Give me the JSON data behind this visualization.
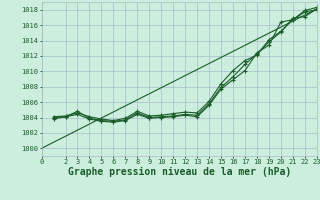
{
  "bg_color": "#cceedd",
  "grid_color": "#aabbcc",
  "line_color": "#1a5c2a",
  "xlabel": "Graphe pression niveau de la mer (hPa)",
  "xlabel_fontsize": 7,
  "ylim": [
    999,
    1019
  ],
  "xlim": [
    0,
    23
  ],
  "yticks": [
    1000,
    1002,
    1004,
    1006,
    1008,
    1010,
    1012,
    1014,
    1016,
    1018
  ],
  "xticks": [
    0,
    2,
    3,
    4,
    5,
    6,
    7,
    8,
    9,
    10,
    11,
    12,
    13,
    14,
    15,
    16,
    17,
    18,
    19,
    20,
    21,
    22,
    23
  ],
  "series1_x": [
    1,
    2,
    3,
    4,
    5,
    6,
    7,
    8,
    9,
    10,
    11,
    12,
    13,
    14,
    15,
    16,
    17,
    18,
    19,
    20,
    21,
    22,
    23
  ],
  "series1_y": [
    1003.8,
    1004.1,
    1004.8,
    1003.9,
    1003.6,
    1003.5,
    1003.7,
    1004.6,
    1004.0,
    1004.1,
    1004.2,
    1004.4,
    1004.3,
    1005.8,
    1007.9,
    1009.3,
    1010.9,
    1012.3,
    1013.8,
    1015.1,
    1016.9,
    1017.1,
    1018.1
  ],
  "series2_x": [
    1,
    2,
    3,
    4,
    5,
    6,
    7,
    8,
    9,
    10,
    11,
    12,
    13,
    14,
    15,
    16,
    17,
    18,
    19,
    20,
    21,
    22,
    23
  ],
  "series2_y": [
    1004.1,
    1004.2,
    1004.6,
    1004.1,
    1003.8,
    1003.6,
    1003.9,
    1004.8,
    1004.2,
    1004.3,
    1004.5,
    1004.7,
    1004.6,
    1006.1,
    1008.4,
    1010.1,
    1011.4,
    1012.1,
    1014.1,
    1015.2,
    1016.7,
    1017.9,
    1018.3
  ],
  "series3_x": [
    1,
    2,
    3,
    4,
    5,
    6,
    7,
    8,
    9,
    10,
    11,
    12,
    13,
    14,
    15,
    16,
    17,
    18,
    19,
    20,
    21,
    22,
    23
  ],
  "series3_y": [
    1004.0,
    1004.1,
    1004.4,
    1003.8,
    1003.5,
    1003.4,
    1003.6,
    1004.4,
    1003.9,
    1004.0,
    1004.1,
    1004.3,
    1004.1,
    1005.6,
    1007.7,
    1008.9,
    1010.1,
    1012.4,
    1013.4,
    1016.4,
    1016.7,
    1017.7,
    1018.0
  ],
  "series4_x": [
    0,
    23
  ],
  "series4_y": [
    1000.0,
    1018.1
  ]
}
